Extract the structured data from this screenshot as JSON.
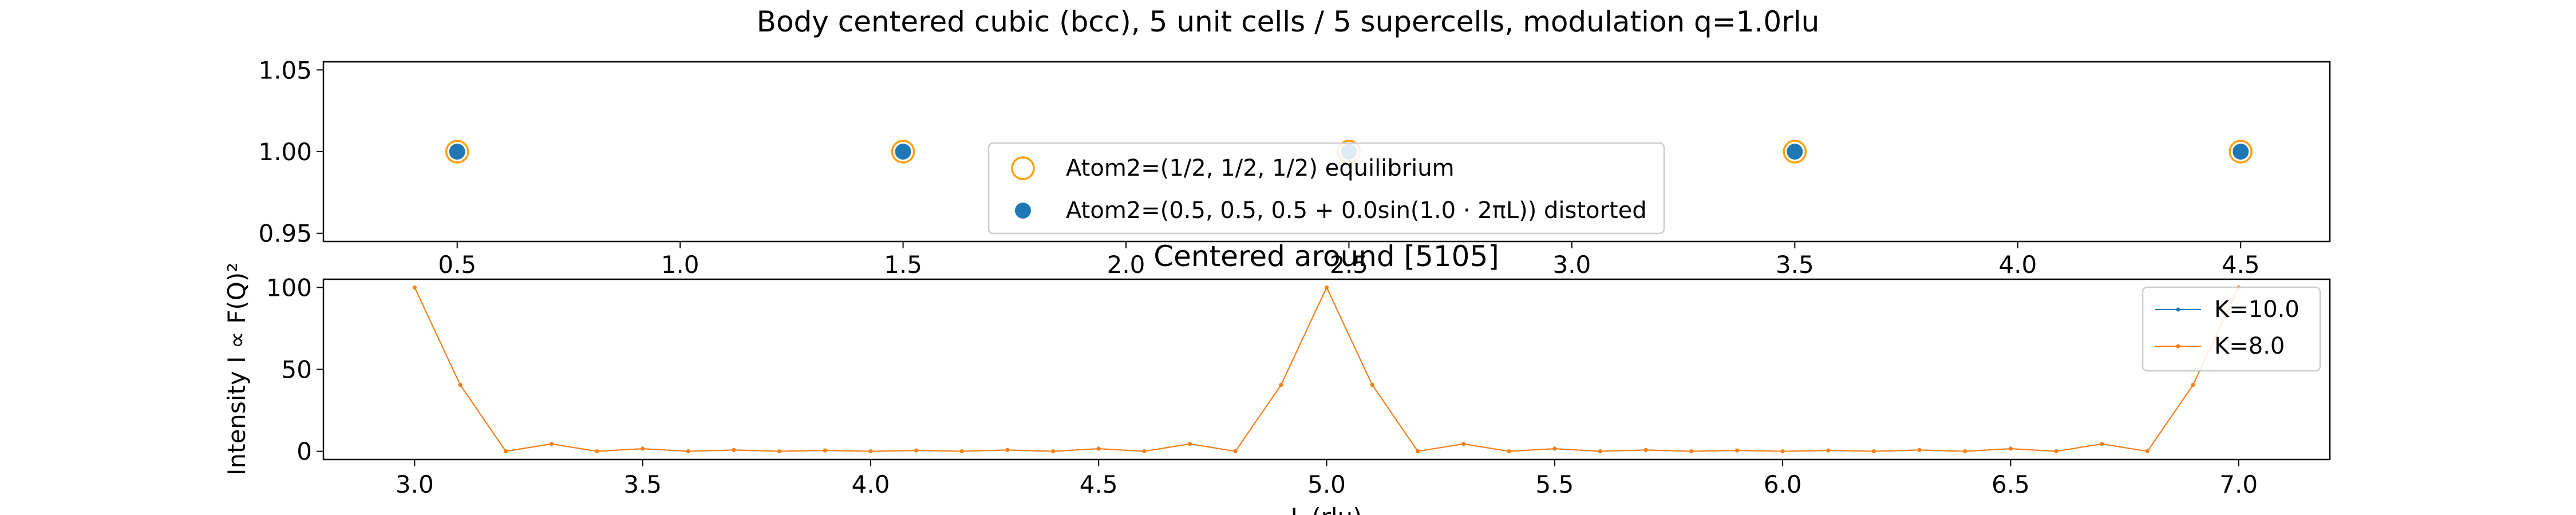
{
  "figure_title": "Body centered cubic (bcc), 5 unit cells / 5 supercells, modulation q=1.0rlu",
  "chart_data": [
    {
      "type": "scatter",
      "title": "",
      "xlabel": "",
      "ylabel": "",
      "xlim": [
        0.2,
        4.7
      ],
      "ylim": [
        0.945,
        1.055
      ],
      "xticks": [
        0.5,
        1.0,
        1.5,
        2.0,
        2.5,
        3.0,
        3.5,
        4.0,
        4.5
      ],
      "xtick_labels": [
        "0.5",
        "1.0",
        "1.5",
        "2.0",
        "2.5",
        "3.0",
        "3.5",
        "4.0",
        "4.5"
      ],
      "yticks": [
        0.95,
        1.0,
        1.05
      ],
      "ytick_labels": [
        "0.95",
        "1.00",
        "1.05"
      ],
      "grid": false,
      "legend_placement": "lower center",
      "series": [
        {
          "name": "Atom2=(1/2, 1/2, 1/2) equilibrium",
          "marker": "open-circle",
          "color": "#ff9f0e",
          "x": [
            0.5,
            1.5,
            2.5,
            3.5,
            4.5
          ],
          "y": [
            1.0,
            1.0,
            1.0,
            1.0,
            1.0
          ]
        },
        {
          "name": "Atom2=(0.5, 0.5, 0.5 + 0.0sin(1.0 · 2πL)) distorted",
          "marker": "filled-circle",
          "color": "#1f77b4",
          "x": [
            0.5,
            1.5,
            2.5,
            3.5,
            4.5
          ],
          "y": [
            1.0,
            1.0,
            1.0,
            1.0,
            1.0
          ]
        }
      ]
    },
    {
      "type": "line",
      "title": "Centered around [5105]",
      "xlabel": "L (rlu)",
      "ylabel": "Intensity I ∝ F(Q)²",
      "xlim": [
        2.8,
        7.2
      ],
      "ylim": [
        -5,
        105
      ],
      "xticks": [
        3.0,
        3.5,
        4.0,
        4.5,
        5.0,
        5.5,
        6.0,
        6.5,
        7.0
      ],
      "xtick_labels": [
        "3.0",
        "3.5",
        "4.0",
        "4.5",
        "5.0",
        "5.5",
        "6.0",
        "6.5",
        "7.0"
      ],
      "yticks": [
        0,
        50,
        100
      ],
      "ytick_labels": [
        "0",
        "50",
        "100"
      ],
      "grid": false,
      "legend_placement": "upper right",
      "x": [
        3.0,
        3.1,
        3.2,
        3.3,
        3.4,
        3.5,
        3.6,
        3.7,
        3.8,
        3.9,
        4.0,
        4.1,
        4.2,
        4.3,
        4.4,
        4.5,
        4.6,
        4.7,
        4.8,
        4.9,
        5.0,
        5.1,
        5.2,
        5.3,
        5.4,
        5.5,
        5.6,
        5.7,
        5.8,
        5.9,
        6.0,
        6.1,
        6.2,
        6.3,
        6.4,
        6.5,
        6.6,
        6.7,
        6.8,
        6.9,
        7.0
      ],
      "series": [
        {
          "name": "K=10.0",
          "color": "#1f77b4",
          "values": [
            100,
            40.5,
            0,
            4.5,
            0,
            1.6,
            0,
            0.8,
            0,
            0.5,
            0,
            0.5,
            0,
            0.8,
            0,
            1.6,
            0,
            4.5,
            0,
            40.5,
            100,
            40.5,
            0,
            4.5,
            0,
            1.6,
            0,
            0.8,
            0,
            0.5,
            0,
            0.5,
            0,
            0.8,
            0,
            1.6,
            0,
            4.5,
            0,
            40.5,
            100
          ]
        },
        {
          "name": "K=8.0",
          "color": "#ff7f0e",
          "values": [
            100,
            40.5,
            0,
            4.5,
            0,
            1.6,
            0,
            0.8,
            0,
            0.5,
            0,
            0.5,
            0,
            0.8,
            0,
            1.6,
            0,
            4.5,
            0,
            40.5,
            100,
            40.5,
            0,
            4.5,
            0,
            1.6,
            0,
            0.8,
            0,
            0.5,
            0,
            0.5,
            0,
            0.8,
            0,
            1.6,
            0,
            4.5,
            0,
            40.5,
            100
          ]
        }
      ]
    }
  ]
}
